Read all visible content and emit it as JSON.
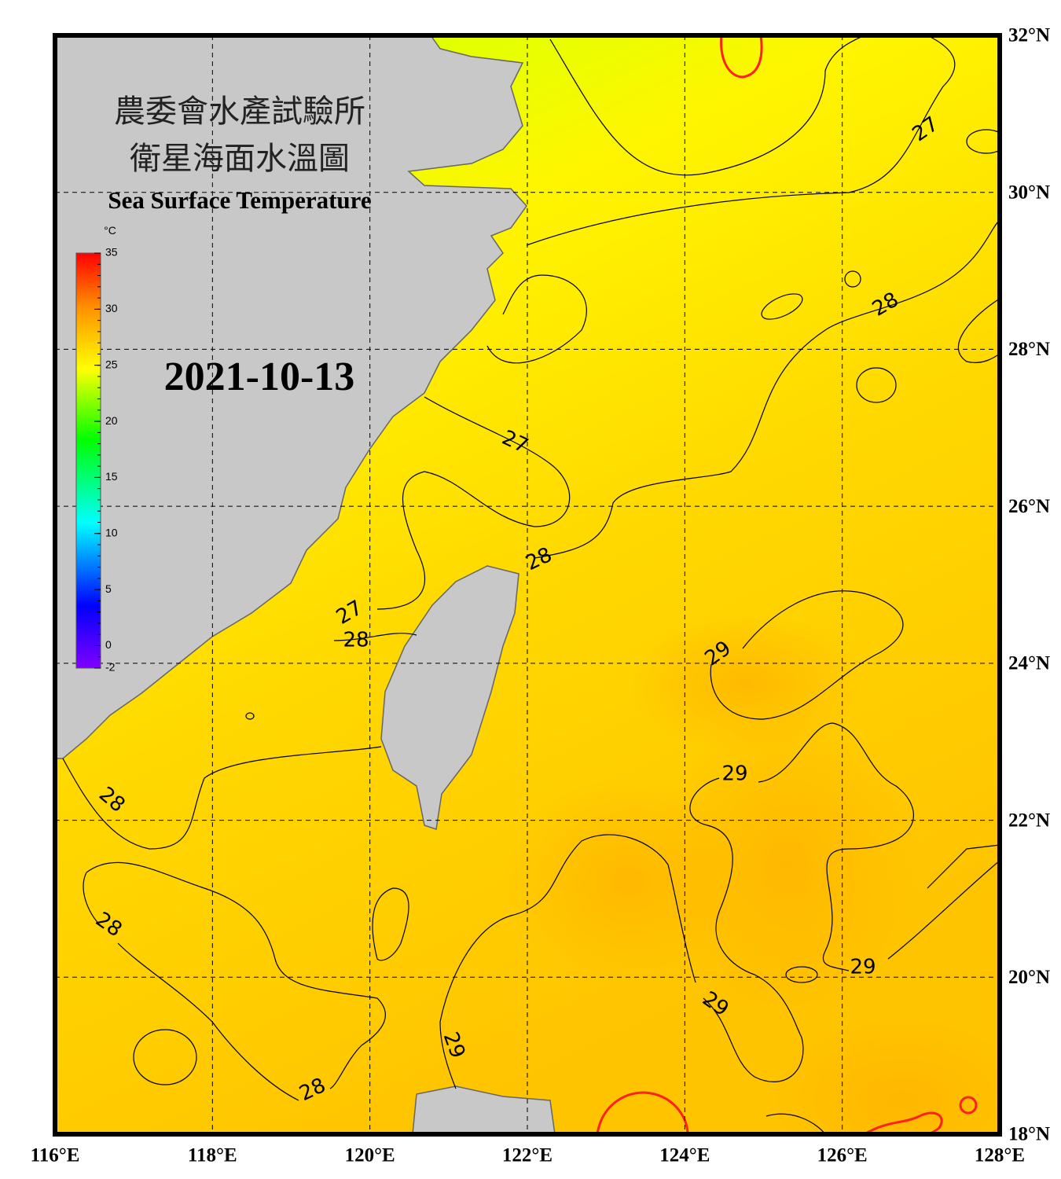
{
  "map": {
    "title_line1": "農委會水產試驗所",
    "title_line2": "衛星海面水溫圖",
    "subtitle": "Sea Surface Temperature",
    "date": "2021-10-13",
    "colorbar_unit": "°C",
    "colorbar_lim": [
      -2,
      35
    ],
    "colorbar_ticks": [
      35,
      30,
      25,
      20,
      15,
      10,
      5,
      0,
      -2
    ],
    "lon_lim": [
      116,
      128
    ],
    "lat_lim": [
      18,
      32
    ],
    "lon_ticks": [
      {
        "value": 116,
        "label": "116°E"
      },
      {
        "value": 118,
        "label": "118°E"
      },
      {
        "value": 120,
        "label": "120°E"
      },
      {
        "value": 122,
        "label": "122°E"
      },
      {
        "value": 124,
        "label": "124°E"
      },
      {
        "value": 126,
        "label": "126°E"
      },
      {
        "value": 128,
        "label": "128°E"
      }
    ],
    "lat_ticks": [
      {
        "value": 18,
        "label": "18°N"
      },
      {
        "value": 20,
        "label": "20°N"
      },
      {
        "value": 22,
        "label": "22°N"
      },
      {
        "value": 24,
        "label": "24°N"
      },
      {
        "value": 26,
        "label": "26°N"
      },
      {
        "value": 28,
        "label": "28°N"
      },
      {
        "value": 30,
        "label": "30°N"
      },
      {
        "value": 32,
        "label": "32°N"
      }
    ],
    "contour_labels": [
      27,
      28,
      27,
      28,
      27,
      28,
      29,
      28,
      29,
      28,
      29,
      29,
      29,
      28
    ]
  }
}
